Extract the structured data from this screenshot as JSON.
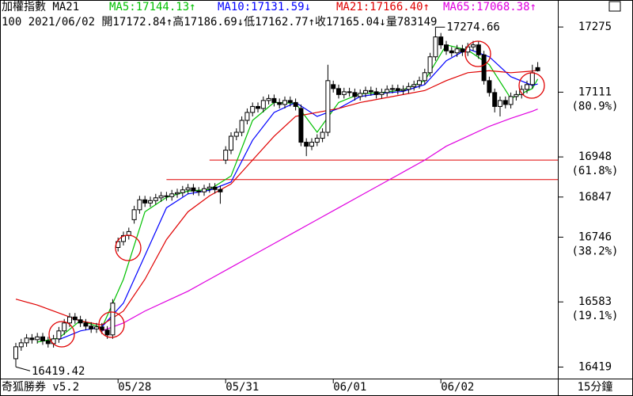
{
  "chart_data": {
    "type": "candlestick",
    "header": {
      "title": "加權指數 MA21",
      "ma_labels": [
        {
          "text": "MA5:17144.13↑",
          "color": "#00c000"
        },
        {
          "text": "MA10:17131.59↓",
          "color": "#0000ff"
        },
        {
          "text": "MA21:17166.40↑",
          "color": "#e00000"
        },
        {
          "text": "MA65:17068.38↑",
          "color": "#e000e0"
        }
      ],
      "quote": "100 2021/06/02 開17172.84↑高17186.69↓低17162.77↑收17165.04↓量783149"
    },
    "footer": {
      "brand": "奇狐勝券 v5.2",
      "period": "15分鐘"
    },
    "x_labels": [
      {
        "index": 19,
        "label": "05/28"
      },
      {
        "index": 39,
        "label": "05/31"
      },
      {
        "index": 59,
        "label": "06/01"
      },
      {
        "index": 79,
        "label": "06/02"
      }
    ],
    "open": [
      16440,
      16470,
      16480,
      16492,
      16488,
      16495,
      16485,
      16478,
      16490,
      16510,
      16530,
      16545,
      16538,
      16530,
      16522,
      16515,
      16520,
      16512,
      16500,
      16720,
      16735,
      16750,
      16790,
      16815,
      16840,
      16832,
      16838,
      16845,
      16850,
      16848,
      16855,
      16858,
      16865,
      16870,
      16862,
      16860,
      16868,
      16872,
      16866,
      16940,
      16965,
      17000,
      17010,
      17040,
      17060,
      17075,
      17070,
      17090,
      17095,
      17085,
      17080,
      17090,
      17085,
      17070,
      16985,
      16975,
      16985,
      16995,
      17010,
      17130,
      17120,
      17105,
      17112,
      17110,
      17100,
      17108,
      17115,
      17112,
      17105,
      17110,
      17118,
      17120,
      17115,
      17118,
      17125,
      17130,
      17140,
      17160,
      17200,
      17250,
      17230,
      17215,
      17210,
      17220,
      17212,
      17225,
      17230,
      17205,
      17140,
      17110,
      17075,
      17090,
      17080,
      17100,
      17105,
      17118,
      17130,
      17172.84
    ],
    "high": [
      16480,
      16490,
      16502,
      16502,
      16505,
      16505,
      16495,
      16500,
      16520,
      16540,
      16555,
      16555,
      16548,
      16540,
      16532,
      16530,
      16530,
      16522,
      16590,
      16745,
      16760,
      16770,
      16825,
      16850,
      16850,
      16848,
      16855,
      16860,
      16860,
      16865,
      16868,
      16875,
      16880,
      16880,
      16872,
      16878,
      16882,
      16882,
      16876,
      16975,
      17010,
      17020,
      17050,
      17070,
      17085,
      17085,
      17100,
      17105,
      17105,
      17095,
      17100,
      17100,
      17095,
      17080,
      16995,
      16995,
      17005,
      17020,
      17180,
      17140,
      17130,
      17122,
      17122,
      17120,
      17118,
      17125,
      17125,
      17122,
      17120,
      17128,
      17130,
      17130,
      17128,
      17135,
      17140,
      17150,
      17170,
      17210,
      17274.66,
      17260,
      17240,
      17225,
      17230,
      17230,
      17235,
      17240,
      17240,
      17215,
      17150,
      17120,
      17100,
      17100,
      17110,
      17115,
      17128,
      17140,
      17180,
      17186.69
    ],
    "low": [
      16419.42,
      16460,
      16470,
      16478,
      16478,
      16475,
      16468,
      16468,
      16480,
      16500,
      16520,
      16528,
      16520,
      16512,
      16505,
      16505,
      16502,
      16490,
      16490,
      16710,
      16725,
      16740,
      16780,
      16805,
      16822,
      16822,
      16828,
      16835,
      16838,
      16838,
      16845,
      16848,
      16855,
      16852,
      16850,
      16850,
      16858,
      16856,
      16830,
      16930,
      16955,
      16990,
      17000,
      17030,
      17050,
      17060,
      17060,
      17080,
      17075,
      17070,
      17070,
      17075,
      17065,
      16975,
      16950,
      16965,
      16975,
      16985,
      17000,
      17110,
      17095,
      17095,
      17100,
      17090,
      17090,
      17098,
      17102,
      17095,
      17095,
      17100,
      17108,
      17105,
      17105,
      17108,
      17115,
      17120,
      17130,
      17150,
      17190,
      17220,
      17205,
      17200,
      17200,
      17202,
      17202,
      17215,
      17195,
      17130,
      17100,
      17060,
      17050,
      17070,
      17070,
      17090,
      17095,
      17108,
      17120,
      17162.77
    ],
    "close": [
      16470,
      16480,
      16492,
      16488,
      16495,
      16485,
      16478,
      16490,
      16510,
      16530,
      16545,
      16538,
      16530,
      16522,
      16515,
      16520,
      16512,
      16500,
      16580,
      16735,
      16750,
      16760,
      16815,
      16840,
      16832,
      16838,
      16845,
      16850,
      16848,
      16855,
      16858,
      16865,
      16870,
      16862,
      16860,
      16868,
      16872,
      16866,
      16860,
      16965,
      17000,
      17010,
      17040,
      17060,
      17075,
      17070,
      17090,
      17095,
      17085,
      17080,
      17090,
      17085,
      17075,
      16985,
      16975,
      16985,
      16995,
      17010,
      17140,
      17120,
      17105,
      17112,
      17110,
      17100,
      17108,
      17115,
      17112,
      17105,
      17110,
      17118,
      17120,
      17115,
      17118,
      17125,
      17130,
      17140,
      17160,
      17200,
      17250,
      17230,
      17215,
      17210,
      17220,
      17212,
      17225,
      17230,
      17205,
      17140,
      17110,
      17075,
      17090,
      17080,
      17100,
      17105,
      17118,
      17130,
      17160,
      17165.04
    ],
    "series": [
      {
        "name": "MA5",
        "color": "#00c000",
        "x": [
          4,
          8,
          12,
          16,
          20,
          24,
          28,
          32,
          36,
          40,
          44,
          48,
          52,
          56,
          60,
          64,
          68,
          72,
          76,
          80,
          84,
          88,
          92,
          96,
          97
        ],
        "values": [
          16482,
          16492,
          16536,
          16518,
          16640,
          16810,
          16846,
          16862,
          16866,
          16900,
          17040,
          17085,
          17083,
          17010,
          17085,
          17107,
          17110,
          17117,
          17140,
          17230,
          17217,
          17180,
          17095,
          17120,
          17144.13
        ]
      },
      {
        "name": "MA10",
        "color": "#0000ff",
        "x": [
          8,
          12,
          16,
          20,
          24,
          28,
          32,
          36,
          40,
          44,
          48,
          52,
          56,
          60,
          64,
          68,
          72,
          76,
          80,
          84,
          88,
          92,
          96,
          97
        ],
        "values": [
          16488,
          16510,
          16520,
          16580,
          16700,
          16820,
          16855,
          16864,
          16885,
          16990,
          17060,
          17085,
          17050,
          17070,
          17100,
          17108,
          17113,
          17130,
          17190,
          17220,
          17200,
          17150,
          17128,
          17131.59
        ]
      },
      {
        "name": "MA21",
        "color": "#e00000",
        "x": [
          0,
          4,
          8,
          12,
          16,
          20,
          24,
          28,
          32,
          36,
          40,
          44,
          48,
          52,
          56,
          60,
          64,
          68,
          72,
          76,
          80,
          84,
          88,
          92,
          96,
          97
        ],
        "values": [
          16590,
          16575,
          16555,
          16535,
          16525,
          16560,
          16640,
          16740,
          16810,
          16850,
          16880,
          16940,
          17000,
          17050,
          17060,
          17070,
          17085,
          17095,
          17105,
          17115,
          17140,
          17160,
          17165,
          17160,
          17164,
          17166.4
        ]
      },
      {
        "name": "MA65",
        "color": "#e000e0",
        "x": [
          16,
          20,
          24,
          28,
          32,
          36,
          40,
          44,
          48,
          52,
          56,
          60,
          64,
          68,
          72,
          76,
          80,
          84,
          88,
          92,
          96,
          97
        ],
        "values": [
          16510,
          16530,
          16560,
          16585,
          16610,
          16640,
          16670,
          16700,
          16730,
          16760,
          16790,
          16820,
          16850,
          16880,
          16910,
          16940,
          16975,
          17000,
          17025,
          17045,
          17063,
          17068.38
        ]
      }
    ],
    "hlines": [
      {
        "value": 16940,
        "from": 36
      },
      {
        "value": 16891,
        "from": 28
      }
    ],
    "ylim": [
      16390,
      17343
    ],
    "yticks": [
      17275,
      17111,
      16948,
      16847,
      16746,
      16583,
      16419
    ],
    "fib_labels": [
      {
        "value": 17111,
        "label": "(80.9%)"
      },
      {
        "value": 16948,
        "label": "(61.8%)"
      },
      {
        "value": 16746,
        "label": "(38.2%)"
      },
      {
        "value": 16583,
        "label": "(19.1%)"
      }
    ],
    "high_label": "17274.66",
    "low_label": "16419.42"
  }
}
